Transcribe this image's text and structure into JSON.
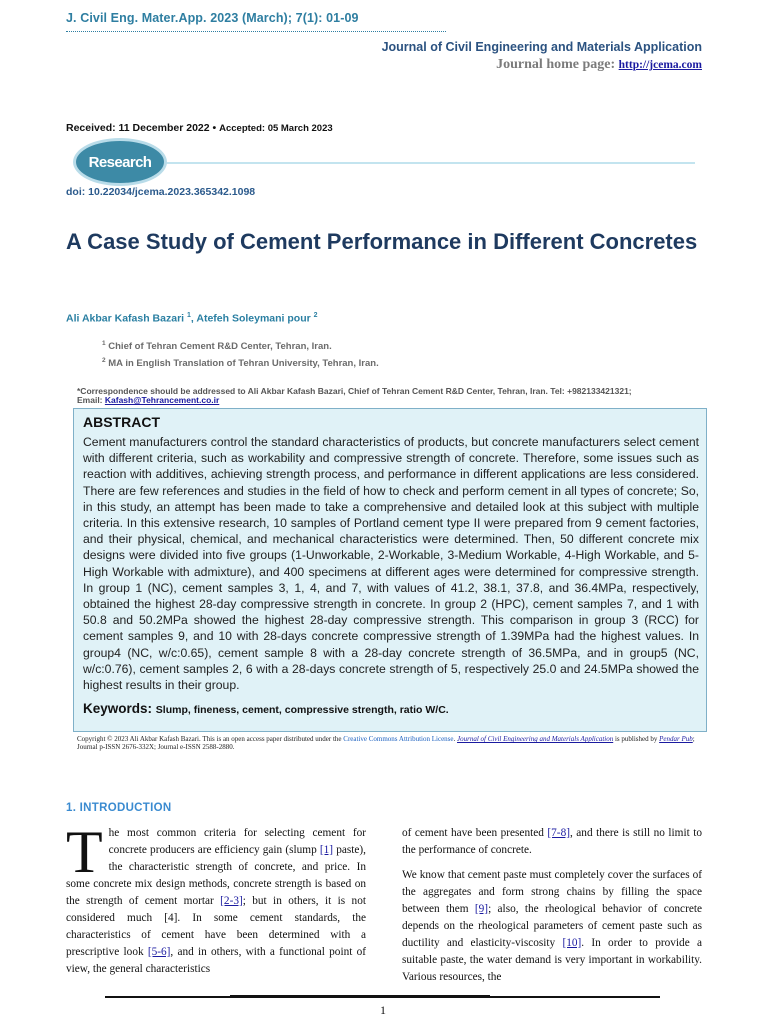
{
  "header": {
    "citation": "J. Civil Eng. Mater.App. 2023 (March); 7(1): 01-09",
    "journal_name": "Journal of Civil Engineering and Materials Application",
    "homepage_label": "Journal home page: ",
    "homepage_url": "http://jcema.com"
  },
  "dates": {
    "received": "Received: 11 December 2022",
    "separator": " • ",
    "accepted": "Accepted: 05 March 2023"
  },
  "article_type": "Research",
  "doi": "doi: 10.22034/jcema.2023.365342.1098",
  "title": "A Case Study of Cement Performance in Different Concretes",
  "authors": [
    {
      "name": "Ali Akbar Kafash Bazari",
      "sup": "1"
    },
    {
      "name": "Atefeh Soleymani pour",
      "sup": "2"
    }
  ],
  "author_sep": ", ",
  "affiliations": [
    {
      "sup": "1",
      "text": " Chief of Tehran Cement R&D Center, Tehran, Iran."
    },
    {
      "sup": "2",
      "text": " MA in English Translation of Tehran University, Tehran, Iran."
    }
  ],
  "correspondence": {
    "text": "*Correspondence should be addressed to Ali Akbar Kafash Bazari, Chief of Tehran Cement R&D Center, Tehran, Iran. Tel: +982133421321;",
    "email_label": "Email: ",
    "email": "Kafash@Tehrancement.co.ir"
  },
  "abstract": {
    "heading": "ABSTRACT",
    "text": "Cement manufacturers control the standard characteristics of products, but concrete manufacturers select cement with different criteria, such as workability and compressive strength of concrete. Therefore, some issues such as reaction with additives, achieving strength process, and performance in different applications are less considered. There are few references and studies in the field of how to check and perform cement in all types of concrete; So, in this study, an attempt has been made to take a comprehensive and detailed look at this subject with multiple criteria. In this extensive research, 10 samples of Portland cement type II were prepared from 9 cement factories, and their physical, chemical, and mechanical characteristics were determined. Then, 50 different concrete mix designs were divided into five groups (1-Unworkable, 2-Workable, 3-Medium Workable, 4-High Workable, and 5-High Workable with admixture), and 400 specimens at different ages were determined for compressive strength. In group 1 (NC), cement samples 3, 1, 4, and 7, with values of 41.2, 38.1, 37.8, and 36.4MPa, respectively, obtained the highest 28-day compressive strength in concrete. In group 2 (HPC), cement samples 7, and 1 with 50.8 and 50.2MPa showed the highest 28-day compressive strength. This comparison in group 3 (RCC) for cement samples 9, and 10 with 28-days concrete compressive strength of 1.39MPa had the highest values. In group4 (NC, w/c:0.65), cement sample 8 with a 28-day concrete strength of 36.5MPa, and in group5 (NC, w/c:0.76), cement samples 2, 6 with a 28-days concrete strength of 5, respectively 25.0 and 24.5MPa showed the highest results in their group.",
    "keywords_label": "Keywords: ",
    "keywords": "Slump, fineness, cement, compressive strength, ratio W/C."
  },
  "copyright": {
    "text1": "Copyright © 2023 Ali Akbar Kafash Bazari. This is an open access paper distributed under the ",
    "license": "Creative Commons Attribution License",
    "sep1": ". ",
    "journal_link": "Journal of Civil Engineering and Materials Application",
    "text2": " is published by ",
    "publisher": "Pendar Pub",
    "text3": "; Journal p-ISSN 2676-332X; Journal e-ISSN 2588-2880."
  },
  "introduction": {
    "heading": "1. INTRODUCTION",
    "dropcap": "T",
    "left": {
      "p1_a": "he most common criteria for selecting cement for concrete producers are efficiency gain (slump ",
      "ref1": "[1]",
      "p1_b": " paste), the characteristic strength of concrete, and price. In some concrete mix design methods, concrete strength is based on the strength of cement mortar ",
      "ref2": "[2-3]",
      "p1_c": "; but in others, it is not considered much [4]. In some cement standards, the characteristics of cement have been determined with a prescriptive look ",
      "ref3": "[5-6]",
      "p1_d": ", and in others, with a functional point of view, the general characteristics"
    },
    "right": {
      "p1_a": "of cement have been presented ",
      "ref1": "[7-8]",
      "p1_b": ", and there is still no limit to the performance of concrete.",
      "p2_a": "We know that cement paste must completely cover the surfaces of the aggregates and form strong chains by filling the space between them ",
      "ref2": "[9]",
      "p2_b": "; also, the rheological behavior of concrete depends on the rheological parameters of cement paste such as ductility and elasticity-viscosity ",
      "ref3": "[10]",
      "p2_c": ". In order to provide a suitable paste, the water demand is very important in workability. Various resources, the"
    }
  },
  "page_number": "1",
  "colors": {
    "accent_teal": "#2e7ea1",
    "title_navy": "#1e3a5f",
    "abstract_bg": "#e0f2f7",
    "link_blue": "#1a1aa0",
    "intro_heading": "#3b8bd0"
  }
}
